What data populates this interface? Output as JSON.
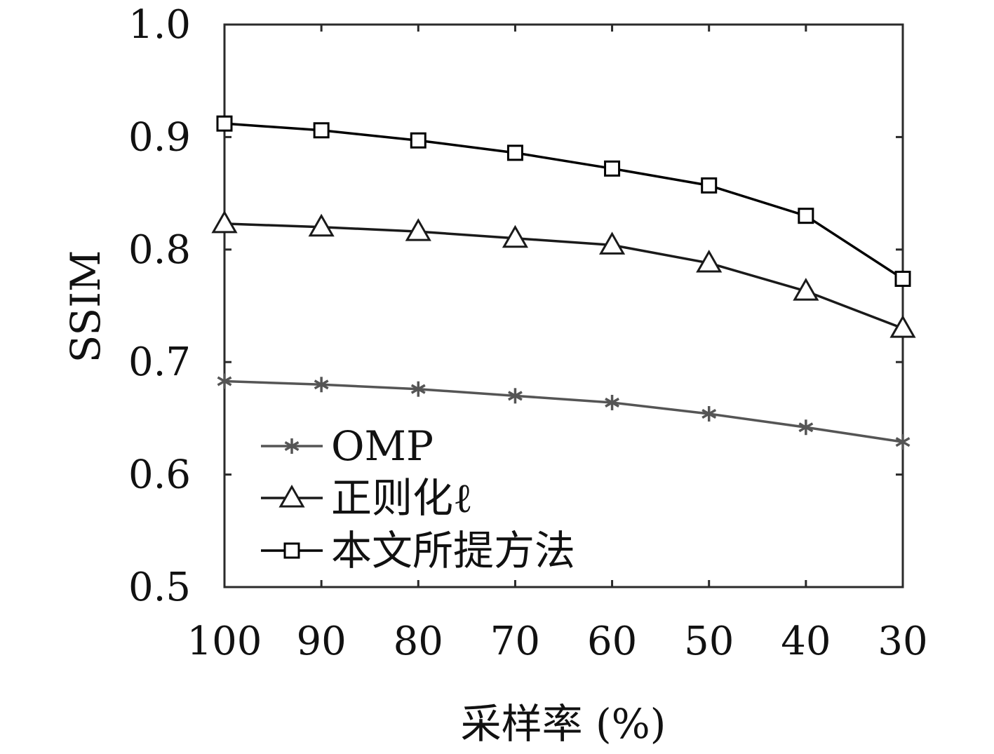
{
  "chart_data": {
    "type": "line",
    "title": "",
    "xlabel": "采样率 (%)",
    "ylabel": "SSIM",
    "x": [
      100,
      90,
      80,
      70,
      60,
      50,
      40,
      30
    ],
    "x_tick_labels": [
      "100",
      "90",
      "80",
      "70",
      "60",
      "50",
      "40",
      "30"
    ],
    "x_reversed": true,
    "y_tick_labels": [
      "0.5",
      "0.6",
      "0.7",
      "0.8",
      "0.9",
      "1.0"
    ],
    "ylim": [
      0.5,
      1.0
    ],
    "grid": false,
    "legend_position": "bottom-left",
    "series": [
      {
        "name": "OMP",
        "marker": "asterisk",
        "color": "#555555",
        "values": [
          0.683,
          0.68,
          0.676,
          0.67,
          0.664,
          0.654,
          0.642,
          0.629
        ]
      },
      {
        "name": "正则化ℓ",
        "marker": "triangle",
        "color": "#1a1a1a",
        "values": [
          0.823,
          0.82,
          0.816,
          0.81,
          0.804,
          0.788,
          0.763,
          0.73
        ]
      },
      {
        "name": "本文所提方法",
        "marker": "square",
        "color": "#000000",
        "values": [
          0.912,
          0.906,
          0.897,
          0.886,
          0.872,
          0.857,
          0.83,
          0.774
        ]
      }
    ]
  }
}
